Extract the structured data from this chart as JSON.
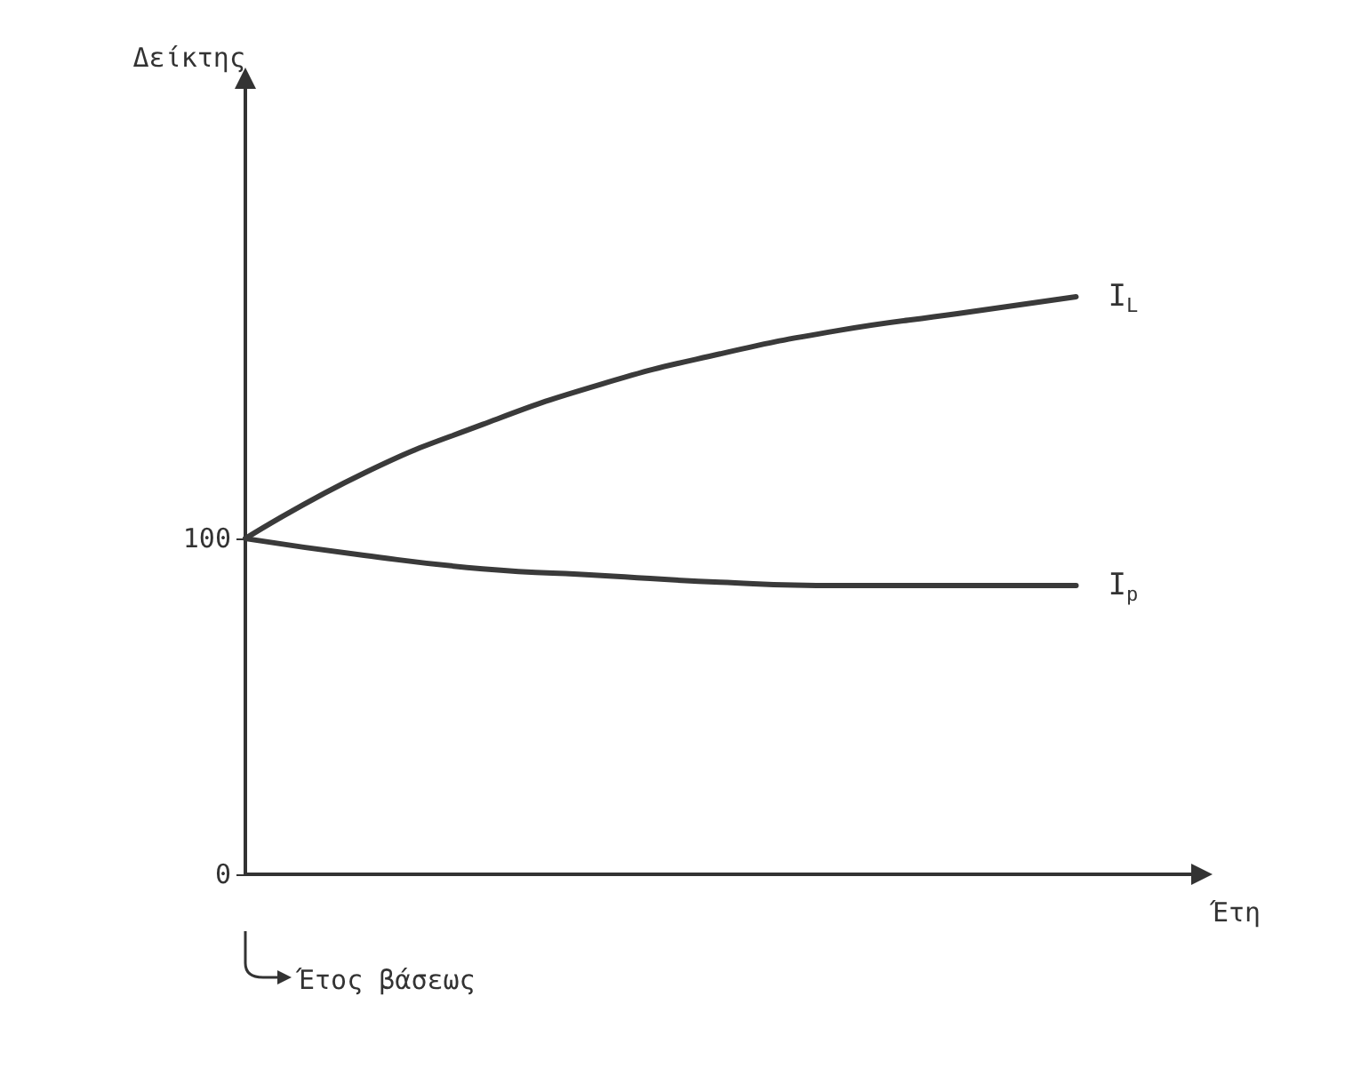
{
  "chart_data": {
    "type": "line",
    "xlabel": "Έτη",
    "ylabel": "Δείκτης",
    "categories": [
      null,
      null,
      null,
      null,
      null,
      null,
      null,
      null,
      null
    ],
    "series": [
      {
        "name": "I$_{L}$",
        "color": "#3a3a3a",
        "values": [
          100,
          119.5,
          134,
          146,
          155,
          162,
          167,
          172,
          null
        ]
      },
      {
        "name": "I$_{p}$",
        "color": "#3a3a3a",
        "values": [
          100,
          95,
          91,
          89,
          87,
          86,
          86,
          86,
          null
        ]
      }
    ],
    "ylim": [
      0,
      235
    ],
    "yticks": [
      0,
      100
    ],
    "grid": false,
    "legend": false,
    "marker": "none",
    "line_style": "solid",
    "annotations": [
      "Έτος βάσεως"
    ]
  }
}
